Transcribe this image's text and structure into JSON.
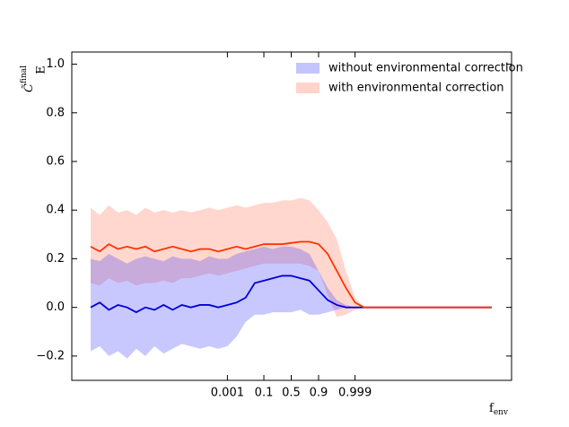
{
  "chart_data": {
    "type": "band-line",
    "xlabel": {
      "base": "f",
      "sub": "env"
    },
    "ylabel": {
      "base": "C̃",
      "sub": "E",
      "sup": "final"
    },
    "categories": [
      null,
      null,
      null,
      null,
      null,
      null,
      null,
      null,
      null,
      null,
      null,
      null,
      null,
      null,
      null,
      "0.001",
      null,
      null,
      null,
      "0.1",
      null,
      null,
      "0.5",
      null,
      null,
      "0.9",
      null,
      null,
      null,
      "0.999",
      null,
      null,
      null,
      null,
      null,
      null,
      null,
      null,
      null,
      null,
      null,
      null,
      null,
      null,
      null
    ],
    "ylim": [
      -0.3,
      1.05
    ],
    "yticks": [
      {
        "value": -0.2,
        "label": "−0.2"
      },
      {
        "value": 0,
        "label": "0.0"
      },
      0.2,
      0.4,
      0.6,
      0.8,
      {
        "value": 1,
        "label": "1.0"
      }
    ],
    "legend": "upper right",
    "series": [
      {
        "name": "without environmental correction",
        "color": "#0000dd",
        "band_color": "#3a3aff",
        "values": [
          0.0,
          0.02,
          -0.01,
          0.01,
          0.0,
          -0.02,
          0.0,
          -0.01,
          0.01,
          -0.01,
          0.01,
          0.0,
          0.01,
          0.01,
          0.0,
          0.01,
          0.02,
          0.04,
          0.1,
          0.11,
          0.12,
          0.13,
          0.13,
          0.12,
          0.11,
          0.07,
          0.03,
          0.01,
          0.0,
          0,
          0,
          0,
          0,
          0,
          0,
          0,
          0,
          0,
          0,
          0,
          0,
          0,
          0,
          0,
          0
        ],
        "upper": [
          0.2,
          0.19,
          0.22,
          0.2,
          0.18,
          0.2,
          0.21,
          0.2,
          0.19,
          0.21,
          0.2,
          0.2,
          0.19,
          0.21,
          0.2,
          0.2,
          0.22,
          0.23,
          0.24,
          0.25,
          0.24,
          0.25,
          0.25,
          0.24,
          0.22,
          0.15,
          0.08,
          0.03,
          0.01,
          0,
          0,
          0,
          0,
          0,
          0,
          0,
          0,
          0,
          0,
          0,
          0,
          0,
          0,
          0,
          0
        ],
        "lower": [
          -0.18,
          -0.16,
          -0.2,
          -0.18,
          -0.21,
          -0.17,
          -0.2,
          -0.16,
          -0.19,
          -0.17,
          -0.15,
          -0.16,
          -0.17,
          -0.16,
          -0.17,
          -0.16,
          -0.12,
          -0.06,
          -0.03,
          -0.03,
          -0.02,
          -0.02,
          -0.02,
          -0.01,
          -0.03,
          -0.03,
          -0.02,
          -0.01,
          0.0,
          0,
          0,
          0,
          0,
          0,
          0,
          0,
          0,
          0,
          0,
          0,
          0,
          0,
          0,
          0,
          0
        ]
      },
      {
        "name": "with environmental correction",
        "color": "#ff3300",
        "band_color": "#ff7050",
        "values": [
          0.25,
          0.23,
          0.26,
          0.24,
          0.25,
          0.24,
          0.25,
          0.23,
          0.24,
          0.25,
          0.24,
          0.23,
          0.24,
          0.24,
          0.23,
          0.24,
          0.25,
          0.24,
          0.25,
          0.26,
          0.26,
          0.26,
          0.265,
          0.27,
          0.27,
          0.26,
          0.22,
          0.15,
          0.08,
          0.02,
          0.0,
          0,
          0,
          0,
          0,
          0,
          0,
          0,
          0,
          0,
          0,
          0,
          0,
          0,
          0
        ],
        "upper": [
          0.41,
          0.38,
          0.42,
          0.39,
          0.4,
          0.38,
          0.41,
          0.39,
          0.4,
          0.39,
          0.4,
          0.39,
          0.4,
          0.41,
          0.4,
          0.41,
          0.42,
          0.41,
          0.42,
          0.43,
          0.43,
          0.44,
          0.44,
          0.45,
          0.44,
          0.4,
          0.35,
          0.28,
          0.15,
          0.04,
          0.0,
          0,
          0,
          0,
          0,
          0,
          0,
          0,
          0,
          0,
          0,
          0,
          0,
          0,
          0
        ],
        "lower": [
          0.1,
          0.09,
          0.12,
          0.1,
          0.11,
          0.09,
          0.1,
          0.1,
          0.11,
          0.1,
          0.12,
          0.12,
          0.13,
          0.14,
          0.13,
          0.14,
          0.15,
          0.16,
          0.17,
          0.18,
          0.18,
          0.18,
          0.18,
          0.18,
          0.17,
          0.15,
          0.05,
          -0.04,
          -0.03,
          -0.01,
          0.0,
          0,
          0,
          0,
          0,
          0,
          0,
          0,
          0,
          0,
          0,
          0,
          0,
          0,
          0
        ]
      }
    ]
  }
}
